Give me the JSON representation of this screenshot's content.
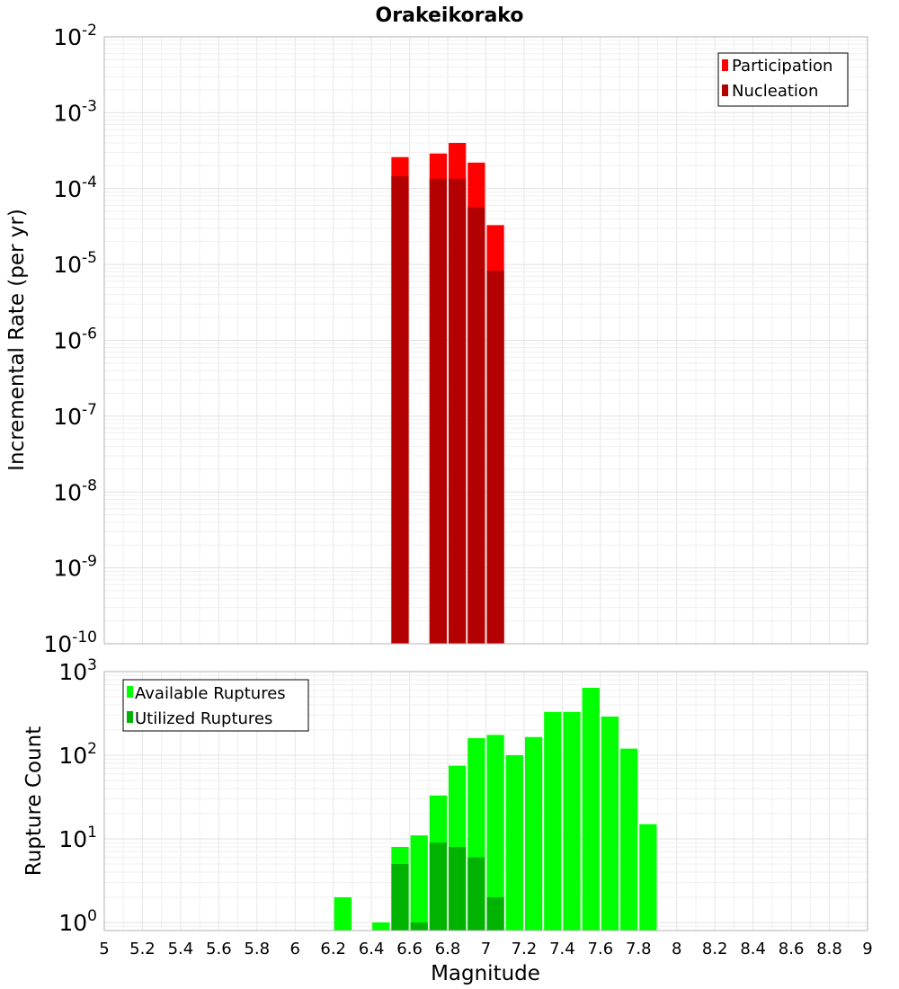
{
  "chart_data": [
    {
      "type": "bar",
      "title": "Orakeikorako",
      "ylabel": "Incremental Rate (per yr)",
      "xlim": [
        5,
        9
      ],
      "ylim": [
        1e-10,
        0.01
      ],
      "yscale": "log",
      "grid": true,
      "legend_position": "top-right",
      "x_ticks": [
        "5",
        "5.2",
        "5.4",
        "5.6",
        "5.8",
        "6",
        "6.2",
        "6.4",
        "6.6",
        "6.8",
        "7",
        "7.2",
        "7.4",
        "7.6",
        "7.8",
        "8",
        "8.2",
        "8.4",
        "8.6",
        "8.8",
        "9"
      ],
      "y_ticks": [
        {
          "base": "10",
          "exp": "-2",
          "value": 0.01
        },
        {
          "base": "10",
          "exp": "-3",
          "value": 0.001
        },
        {
          "base": "10",
          "exp": "-4",
          "value": 0.0001
        },
        {
          "base": "10",
          "exp": "-5",
          "value": 1e-05
        },
        {
          "base": "10",
          "exp": "-6",
          "value": 1e-06
        },
        {
          "base": "10",
          "exp": "-7",
          "value": 1e-07
        },
        {
          "base": "10",
          "exp": "-8",
          "value": 1e-08
        },
        {
          "base": "10",
          "exp": "-9",
          "value": 1e-09
        },
        {
          "base": "10",
          "exp": "-10",
          "value": 1e-10
        }
      ],
      "bin_width": 0.1,
      "series": [
        {
          "name": "Participation",
          "color": "#ff0000",
          "x": [
            6.55,
            6.75,
            6.85,
            6.95,
            7.05
          ],
          "values": [
            0.00026,
            0.00029,
            0.0004,
            0.00022,
            3.3e-05
          ]
        },
        {
          "name": "Nucleation",
          "color": "#b30000",
          "x": [
            6.55,
            6.75,
            6.85,
            6.95,
            7.05
          ],
          "values": [
            0.000145,
            0.000135,
            0.000135,
            5.7e-05,
            8.3e-06
          ]
        }
      ]
    },
    {
      "type": "bar",
      "xlabel": "Magnitude",
      "ylabel": "Rupture Count",
      "xlim": [
        5,
        9
      ],
      "ylim": [
        0.8,
        1000
      ],
      "yscale": "log",
      "grid": true,
      "legend_position": "top-left",
      "x_ticks": [
        "5",
        "5.2",
        "5.4",
        "5.6",
        "5.8",
        "6",
        "6.2",
        "6.4",
        "6.6",
        "6.8",
        "7",
        "7.2",
        "7.4",
        "7.6",
        "7.8",
        "8",
        "8.2",
        "8.4",
        "8.6",
        "8.8",
        "9"
      ],
      "y_ticks": [
        {
          "base": "10",
          "exp": "3",
          "value": 1000
        },
        {
          "base": "10",
          "exp": "2",
          "value": 100
        },
        {
          "base": "10",
          "exp": "1",
          "value": 10
        },
        {
          "base": "10",
          "exp": "0",
          "value": 1
        }
      ],
      "bin_width": 0.1,
      "series": [
        {
          "name": "Available Ruptures",
          "color": "#00ff00",
          "x": [
            6.25,
            6.45,
            6.55,
            6.65,
            6.75,
            6.85,
            6.95,
            7.05,
            7.15,
            7.25,
            7.35,
            7.45,
            7.55,
            7.65,
            7.75,
            7.85
          ],
          "values": [
            2,
            1,
            8,
            11,
            33,
            75,
            160,
            175,
            100,
            165,
            330,
            330,
            640,
            290,
            120,
            15
          ]
        },
        {
          "name": "Utilized Ruptures",
          "color": "#00b300",
          "x": [
            6.55,
            6.65,
            6.75,
            6.85,
            6.95,
            7.05
          ],
          "values": [
            5,
            1,
            9,
            8,
            6,
            2
          ]
        }
      ]
    }
  ]
}
